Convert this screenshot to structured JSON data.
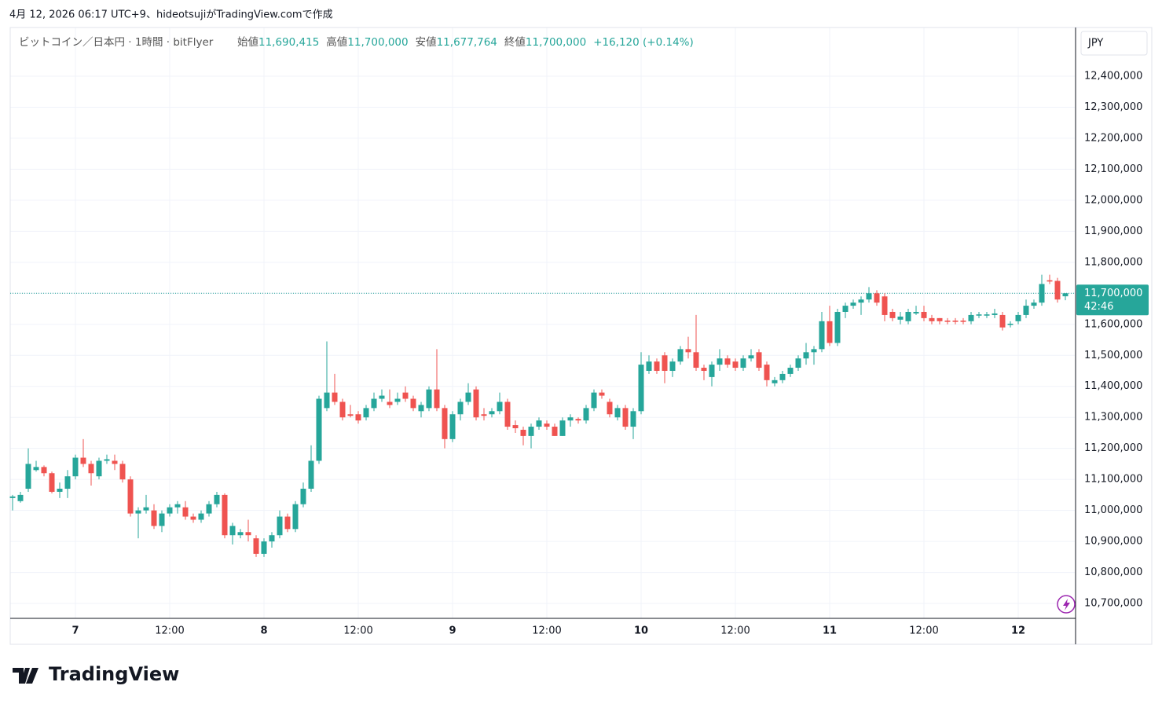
{
  "header": {
    "caption": "4月 12, 2026 06:17 UTC+9、hideotsujiがTradingView.comで作成",
    "symbol": "ビットコイン／日本円 · 1時間 · bitFlyer",
    "ohlc": [
      {
        "label": "始値",
        "value": "11,690,415"
      },
      {
        "label": "高値",
        "value": "11,700,000"
      },
      {
        "label": "安値",
        "value": "11,677,764"
      },
      {
        "label": "終値",
        "value": "11,700,000"
      }
    ],
    "change": "+16,120 (+0.14%)"
  },
  "footer": {
    "logo": "TradingView"
  },
  "chart_data": {
    "type": "candlestick",
    "currency": "JPY",
    "grid": true,
    "up_color": "#26a69a",
    "down_color": "#ef5350",
    "ylim": [
      10652000,
      12557000
    ],
    "yticks": [
      {
        "value": 10700000,
        "label": "10,700,000"
      },
      {
        "value": 10800000,
        "label": "10,800,000"
      },
      {
        "value": 10900000,
        "label": "10,900,000"
      },
      {
        "value": 11000000,
        "label": "11,000,000"
      },
      {
        "value": 11100000,
        "label": "11,100,000"
      },
      {
        "value": 11200000,
        "label": "11,200,000"
      },
      {
        "value": 11300000,
        "label": "11,300,000"
      },
      {
        "value": 11400000,
        "label": "11,400,000"
      },
      {
        "value": 11500000,
        "label": "11,500,000"
      },
      {
        "value": 11600000,
        "label": "11,600,000"
      },
      {
        "value": 11700000,
        "label": "11,700,000"
      },
      {
        "value": 11800000,
        "label": "11,800,000"
      },
      {
        "value": 11900000,
        "label": "11,900,000"
      },
      {
        "value": 12000000,
        "label": "12,000,000"
      },
      {
        "value": 12100000,
        "label": "12,100,000"
      },
      {
        "value": 12200000,
        "label": "12,200,000"
      },
      {
        "value": 12300000,
        "label": "12,300,000"
      },
      {
        "value": 12400000,
        "label": "12,400,000"
      }
    ],
    "last_price": {
      "value": 11700000,
      "label": "11,700,000",
      "countdown": "42:46"
    },
    "categories": [
      null,
      null,
      null,
      null,
      null,
      null,
      null,
      null,
      "7",
      null,
      null,
      null,
      null,
      null,
      null,
      null,
      null,
      null,
      null,
      null,
      "12:00",
      null,
      null,
      null,
      null,
      null,
      null,
      null,
      null,
      null,
      null,
      null,
      "8",
      null,
      null,
      null,
      null,
      null,
      null,
      null,
      null,
      null,
      null,
      null,
      "12:00",
      null,
      null,
      null,
      null,
      null,
      null,
      null,
      null,
      null,
      null,
      null,
      "9",
      null,
      null,
      null,
      null,
      null,
      null,
      null,
      null,
      null,
      null,
      null,
      "12:00",
      null,
      null,
      null,
      null,
      null,
      null,
      null,
      null,
      null,
      null,
      null,
      "10",
      null,
      null,
      null,
      null,
      null,
      null,
      null,
      null,
      null,
      null,
      null,
      "12:00",
      null,
      null,
      null,
      null,
      null,
      null,
      null,
      null,
      null,
      null,
      null,
      "11",
      null,
      null,
      null,
      null,
      null,
      null,
      null,
      null,
      null,
      null,
      null,
      "12:00",
      null,
      null,
      null,
      null,
      null,
      null,
      null,
      null,
      null,
      null,
      null,
      "12",
      null,
      null,
      null,
      null,
      null,
      null
    ],
    "open": [
      11040000,
      11030000,
      11070000,
      11130000,
      11140000,
      11120000,
      11060000,
      11070000,
      11110000,
      11170000,
      11150000,
      11110000,
      11160000,
      11160000,
      11150000,
      11100000,
      10990000,
      11000000,
      11000000,
      10950000,
      10990000,
      11010000,
      11010000,
      10980000,
      10970000,
      10990000,
      11020000,
      11050000,
      10920000,
      10920000,
      10930000,
      10910000,
      10860000,
      10900000,
      10920000,
      10980000,
      10940000,
      11020000,
      11070000,
      11160000,
      11330000,
      11380000,
      11350000,
      11310000,
      11310000,
      11300000,
      11330000,
      11360000,
      11350000,
      11350000,
      11380000,
      11360000,
      11320000,
      11330000,
      11390000,
      11330000,
      11230000,
      11310000,
      11350000,
      11390000,
      11310000,
      11310000,
      11320000,
      11350000,
      11275000,
      11260000,
      11240000,
      11270000,
      11280000,
      11270000,
      11240000,
      11290000,
      11295000,
      11290000,
      11330000,
      11380000,
      11350000,
      11300000,
      11330000,
      11270000,
      11320000,
      11450000,
      11480000,
      11500000,
      11450000,
      11480000,
      11520000,
      11510000,
      11460000,
      11430000,
      11470000,
      11490000,
      11480000,
      11460000,
      11490000,
      11510000,
      11470000,
      11410000,
      11420000,
      11440000,
      11460000,
      11490000,
      11510000,
      11520000,
      11610000,
      11540000,
      11640000,
      11660000,
      11670000,
      11680000,
      11700000,
      11690000,
      11640000,
      11615000,
      11610000,
      11635000,
      11640000,
      11620000,
      11620000,
      11612000,
      11612000,
      11612000,
      11610000,
      11628000,
      11628000,
      11630000,
      11630000,
      11598000,
      11610000,
      11630000,
      11660000,
      11670000,
      11742000,
      11740000,
      11690415
    ],
    "high": [
      11050000,
      11060000,
      11200000,
      11160000,
      11145000,
      11125000,
      11090000,
      11130000,
      11180000,
      11230000,
      11160000,
      11170000,
      11180000,
      11180000,
      11160000,
      11110000,
      11010000,
      11050000,
      11020000,
      11000000,
      11020000,
      11030000,
      11030000,
      10990000,
      11000000,
      11030000,
      11060000,
      11055000,
      10960000,
      10940000,
      10970000,
      10920000,
      10910000,
      10930000,
      11000000,
      10990000,
      11030000,
      11090000,
      11210000,
      11370000,
      11545000,
      11440000,
      11360000,
      11340000,
      11320000,
      11340000,
      11380000,
      11390000,
      11390000,
      11380000,
      11400000,
      11370000,
      11350000,
      11400000,
      11520000,
      11340000,
      11320000,
      11360000,
      11410000,
      11400000,
      11330000,
      11330000,
      11380000,
      11360000,
      11290000,
      11270000,
      11280000,
      11300000,
      11290000,
      11280000,
      11300000,
      11310000,
      11300000,
      11340000,
      11390000,
      11390000,
      11360000,
      11340000,
      11340000,
      11330000,
      11510000,
      11500000,
      11490000,
      11510000,
      11490000,
      11530000,
      11560000,
      11630000,
      11470000,
      11480000,
      11520000,
      11500000,
      11490000,
      11500000,
      11520000,
      11520000,
      11480000,
      11430000,
      11450000,
      11470000,
      11500000,
      11540000,
      11530000,
      11640000,
      11660000,
      11650000,
      11670000,
      11680000,
      11690000,
      11720000,
      11710000,
      11700000,
      11650000,
      11640000,
      11650000,
      11660000,
      11660000,
      11630000,
      11620000,
      11620000,
      11620000,
      11620000,
      11640000,
      11640000,
      11640000,
      11650000,
      11640000,
      11610000,
      11640000,
      11680000,
      11680000,
      11760000,
      11760000,
      11750000,
      11700000
    ],
    "low": [
      11000000,
      11025000,
      11060000,
      11125000,
      11110000,
      11055000,
      11040000,
      11040000,
      11100000,
      11140000,
      11080000,
      11100000,
      11150000,
      11130000,
      11090000,
      10980000,
      10910000,
      10990000,
      10940000,
      10930000,
      10980000,
      10990000,
      10970000,
      10960000,
      10960000,
      10980000,
      11010000,
      10910000,
      10890000,
      10910000,
      10900000,
      10850000,
      10850000,
      10880000,
      10910000,
      10930000,
      10930000,
      11010000,
      11060000,
      11150000,
      11320000,
      11340000,
      11290000,
      11300000,
      11280000,
      11290000,
      11320000,
      11350000,
      11330000,
      11340000,
      11350000,
      11320000,
      11300000,
      11320000,
      11320000,
      11200000,
      11220000,
      11290000,
      11340000,
      11290000,
      11290000,
      11300000,
      11310000,
      11260000,
      11250000,
      11210000,
      11200000,
      11260000,
      11260000,
      11240000,
      11240000,
      11270000,
      11280000,
      11280000,
      11320000,
      11360000,
      11300000,
      11290000,
      11260000,
      11230000,
      11310000,
      11440000,
      11440000,
      11410000,
      11430000,
      11470000,
      11490000,
      11450000,
      11420000,
      11400000,
      11450000,
      11460000,
      11450000,
      11450000,
      11480000,
      11450000,
      11400000,
      11400000,
      11410000,
      11430000,
      11450000,
      11470000,
      11470000,
      11510000,
      11530000,
      11530000,
      11620000,
      11650000,
      11630000,
      11670000,
      11660000,
      11610000,
      11610000,
      11600000,
      11600000,
      11630000,
      11610000,
      11600000,
      11600000,
      11600000,
      11600000,
      11600000,
      11600000,
      11620000,
      11620000,
      11620000,
      11580000,
      11590000,
      11600000,
      11620000,
      11650000,
      11660000,
      11730000,
      11670000,
      11677764
    ],
    "close": [
      11045000,
      11050000,
      11150000,
      11140000,
      11120000,
      11060000,
      11070000,
      11110000,
      11170000,
      11150000,
      11120000,
      11160000,
      11165000,
      11150000,
      11100000,
      10990000,
      11000000,
      11010000,
      10950000,
      10990000,
      11010000,
      11020000,
      10980000,
      10970000,
      10990000,
      11020000,
      11050000,
      10920000,
      10950000,
      10930000,
      10920000,
      10860000,
      10900000,
      10920000,
      10980000,
      10940000,
      11020000,
      11070000,
      11160000,
      11360000,
      11380000,
      11350000,
      11300000,
      11305000,
      11290000,
      11330000,
      11360000,
      11370000,
      11340000,
      11360000,
      11360000,
      11330000,
      11340000,
      11390000,
      11330000,
      11230000,
      11310000,
      11350000,
      11380000,
      11300000,
      11305000,
      11320000,
      11350000,
      11270000,
      11265000,
      11240000,
      11270000,
      11290000,
      11270000,
      11240000,
      11290000,
      11300000,
      11290000,
      11330000,
      11380000,
      11370000,
      11310000,
      11330000,
      11270000,
      11320000,
      11470000,
      11480000,
      11450000,
      11450000,
      11480000,
      11520000,
      11510000,
      11460000,
      11450000,
      11470000,
      11490000,
      11470000,
      11460000,
      11490000,
      11500000,
      11460000,
      11420000,
      11420000,
      11440000,
      11460000,
      11490000,
      11510000,
      11520000,
      11610000,
      11540000,
      11640000,
      11660000,
      11670000,
      11680000,
      11700000,
      11670000,
      11630000,
      11620000,
      11625000,
      11640000,
      11640000,
      11620000,
      11610000,
      11610000,
      11608000,
      11608000,
      11608000,
      11630000,
      11632000,
      11632000,
      11635000,
      11590000,
      11602000,
      11630000,
      11660000,
      11670000,
      11730000,
      11738000,
      11680000,
      11700000
    ]
  }
}
